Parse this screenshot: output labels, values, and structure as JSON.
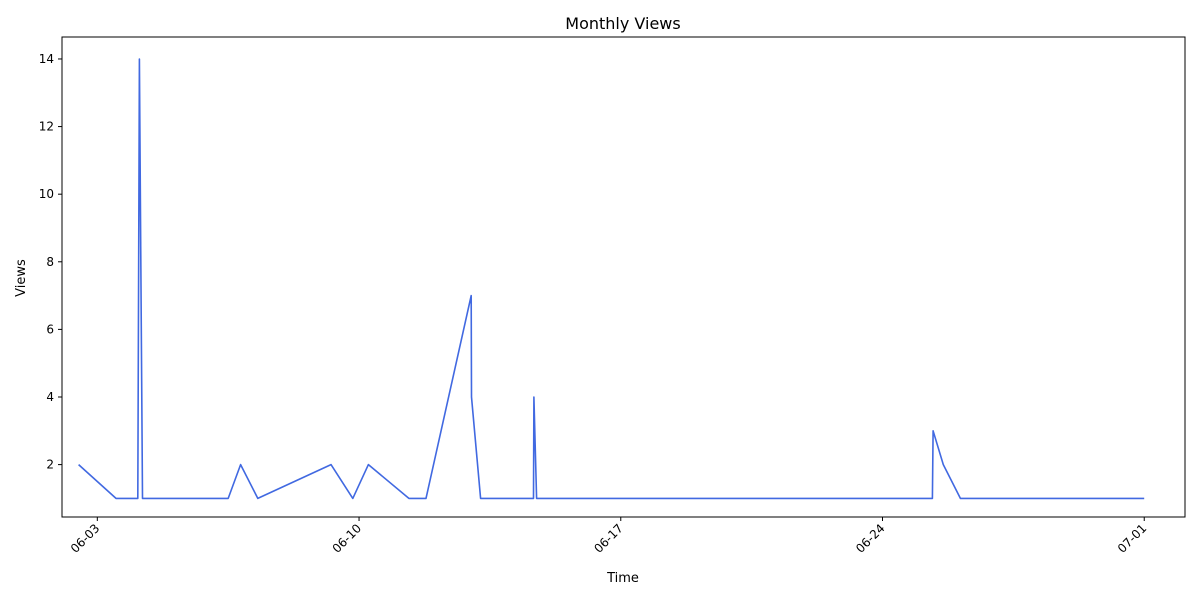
{
  "chart_data": {
    "type": "line",
    "title": "Monthly Views",
    "xlabel": "Time",
    "ylabel": "Views",
    "date_year": 2024,
    "xlim": [
      "2024-06-02T01:20",
      "2024-07-02T02:10"
    ],
    "ylim": [
      0.45,
      14.65
    ],
    "x_ticks": [
      {
        "date": "2024-06-03",
        "label": "06-03"
      },
      {
        "date": "2024-06-10",
        "label": "06-10"
      },
      {
        "date": "2024-06-17",
        "label": "06-17"
      },
      {
        "date": "2024-06-24",
        "label": "06-24"
      },
      {
        "date": "2024-07-01",
        "label": "07-01"
      }
    ],
    "y_ticks": [
      2,
      4,
      6,
      8,
      10,
      12,
      14
    ],
    "grid": false,
    "color": "#4169e1",
    "series": [
      {
        "name": "",
        "points": [
          {
            "x": "2024-06-02T12:00",
            "y": 2
          },
          {
            "x": "2024-06-03T12:00",
            "y": 1
          },
          {
            "x": "2024-06-04T02:00",
            "y": 1
          },
          {
            "x": "2024-06-04T03:00",
            "y": 14
          },
          {
            "x": "2024-06-04T05:00",
            "y": 1
          },
          {
            "x": "2024-06-06T12:00",
            "y": 1
          },
          {
            "x": "2024-06-06T20:00",
            "y": 2
          },
          {
            "x": "2024-06-07T07:00",
            "y": 1
          },
          {
            "x": "2024-06-09T06:00",
            "y": 2
          },
          {
            "x": "2024-06-09T20:00",
            "y": 1
          },
          {
            "x": "2024-06-10T06:00",
            "y": 2
          },
          {
            "x": "2024-06-11T08:00",
            "y": 1
          },
          {
            "x": "2024-06-11T19:00",
            "y": 1
          },
          {
            "x": "2024-06-13T00:00",
            "y": 7
          },
          {
            "x": "2024-06-13T00:10",
            "y": 4
          },
          {
            "x": "2024-06-13T06:00",
            "y": 1
          },
          {
            "x": "2024-06-14T16:00",
            "y": 1
          },
          {
            "x": "2024-06-14T16:15",
            "y": 4
          },
          {
            "x": "2024-06-14T18:00",
            "y": 1
          },
          {
            "x": "2024-06-25T08:00",
            "y": 1
          },
          {
            "x": "2024-06-25T08:30",
            "y": 3
          },
          {
            "x": "2024-06-25T15:00",
            "y": 2
          },
          {
            "x": "2024-06-26T02:00",
            "y": 1
          },
          {
            "x": "2024-07-01T00:00",
            "y": 1
          }
        ]
      }
    ]
  }
}
